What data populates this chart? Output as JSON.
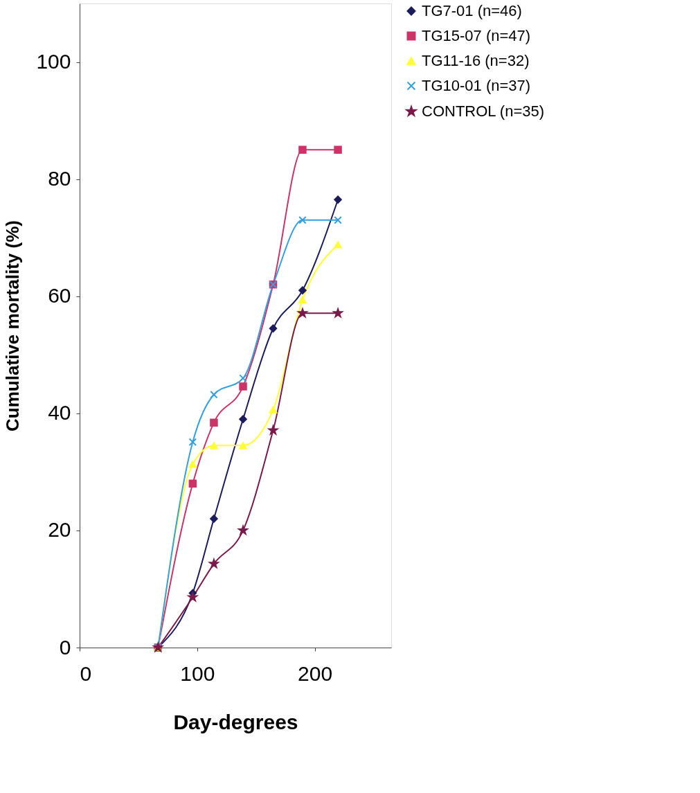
{
  "chart_data": {
    "type": "line",
    "xlabel": "Day-degrees",
    "ylabel": "Cumulative mortality (%)",
    "x": [
      66.7,
      96.2,
      114.2,
      139,
      164.6,
      189.6,
      219.7
    ],
    "series": [
      {
        "name": "TG7-01 (n=46)",
        "color": "#1c1c5c",
        "marker": "diamond",
        "values": [
          0,
          9.3,
          22,
          39,
          54.5,
          61,
          76.5
        ]
      },
      {
        "name": "TG15-07 (n=47)",
        "color": "#cc3366",
        "marker": "square",
        "values": [
          0,
          28,
          38.4,
          44.6,
          62,
          85,
          85
        ]
      },
      {
        "name": "TG11-16 (n=32)",
        "color": "#ffff33",
        "marker": "triangle",
        "values": [
          0,
          31.3,
          34.5,
          34.5,
          40.6,
          59.4,
          68.8
        ]
      },
      {
        "name": "TG10-01 (n=37)",
        "color": "#33a0e0",
        "marker": "cross",
        "values": [
          0,
          35.1,
          43.2,
          46,
          62,
          73,
          73
        ]
      },
      {
        "name": "CONTROL (n=35)",
        "color": "#7a1a4a",
        "marker": "star",
        "values": [
          0,
          8.6,
          14.3,
          20,
          37.1,
          57.1,
          57.1
        ]
      }
    ],
    "xlim": [
      0,
      265
    ],
    "ylim": [
      0,
      110
    ],
    "xticks": [
      0,
      100,
      200
    ],
    "yticks": [
      0,
      20,
      40,
      60,
      80,
      100
    ],
    "grid": false,
    "legend": "right",
    "line_style": "solid"
  }
}
